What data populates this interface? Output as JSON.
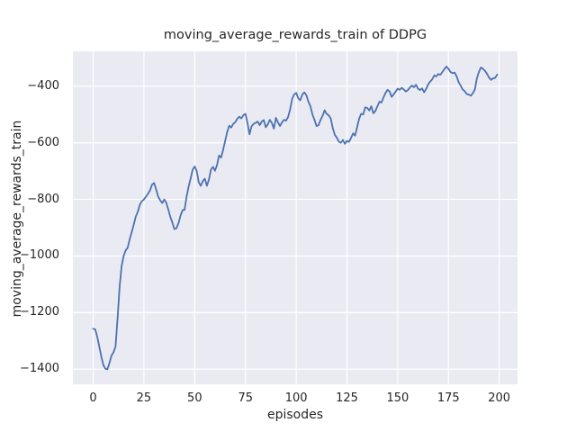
{
  "chart_data": {
    "type": "line",
    "title": "moving_average_rewards_train of DDPG",
    "xlabel": "episodes",
    "ylabel": "moving_average_rewards_train",
    "grid": true,
    "legend_position": "none",
    "plot_bg_color": "#EAEAF2",
    "grid_color": "#FFFFFF",
    "text_color": "#262626",
    "line_color": "#4C72B0",
    "xlim": [
      -10,
      209
    ],
    "ylim": [
      -1453,
      -277
    ],
    "xticks": [
      0,
      25,
      50,
      75,
      100,
      125,
      150,
      175,
      200
    ],
    "yticks": [
      -400,
      -600,
      -800,
      -1000,
      -1200,
      -1400
    ],
    "xtick_labels": [
      "0",
      "25",
      "50",
      "75",
      "100",
      "125",
      "150",
      "175",
      "200"
    ],
    "ytick_labels": [
      "−400",
      "−600",
      "−800",
      "−1000",
      "−1200",
      "−1400"
    ],
    "x_start": 0,
    "x_step": 1,
    "series": [
      {
        "name": "moving_average_rewards_train",
        "color": "#4C72B0",
        "values": [
          -1257,
          -1259,
          -1285,
          -1320,
          -1355,
          -1385,
          -1398,
          -1400,
          -1378,
          -1352,
          -1340,
          -1320,
          -1220,
          -1110,
          -1035,
          -1000,
          -980,
          -970,
          -940,
          -915,
          -888,
          -860,
          -843,
          -818,
          -806,
          -800,
          -790,
          -780,
          -768,
          -748,
          -742,
          -765,
          -790,
          -803,
          -813,
          -800,
          -812,
          -836,
          -862,
          -882,
          -905,
          -902,
          -884,
          -858,
          -838,
          -837,
          -790,
          -755,
          -726,
          -695,
          -684,
          -700,
          -740,
          -752,
          -735,
          -727,
          -752,
          -730,
          -695,
          -685,
          -699,
          -678,
          -645,
          -652,
          -625,
          -593,
          -562,
          -540,
          -546,
          -533,
          -527,
          -515,
          -508,
          -514,
          -502,
          -498,
          -530,
          -570,
          -542,
          -533,
          -530,
          -525,
          -538,
          -525,
          -520,
          -545,
          -535,
          -519,
          -530,
          -550,
          -512,
          -528,
          -541,
          -528,
          -519,
          -522,
          -509,
          -482,
          -445,
          -429,
          -424,
          -443,
          -450,
          -430,
          -422,
          -432,
          -455,
          -471,
          -500,
          -519,
          -541,
          -538,
          -519,
          -505,
          -485,
          -498,
          -503,
          -514,
          -548,
          -572,
          -582,
          -596,
          -600,
          -590,
          -604,
          -593,
          -597,
          -583,
          -567,
          -575,
          -545,
          -515,
          -498,
          -500,
          -475,
          -477,
          -486,
          -471,
          -496,
          -488,
          -471,
          -455,
          -458,
          -440,
          -424,
          -413,
          -419,
          -438,
          -429,
          -419,
          -409,
          -413,
          -406,
          -412,
          -419,
          -414,
          -405,
          -398,
          -404,
          -395,
          -409,
          -414,
          -408,
          -422,
          -410,
          -394,
          -384,
          -376,
          -362,
          -366,
          -357,
          -360,
          -350,
          -340,
          -331,
          -339,
          -350,
          -354,
          -352,
          -365,
          -386,
          -398,
          -412,
          -418,
          -428,
          -430,
          -434,
          -425,
          -412,
          -372,
          -350,
          -334,
          -339,
          -346,
          -357,
          -370,
          -378,
          -372,
          -371,
          -359
        ]
      }
    ]
  }
}
